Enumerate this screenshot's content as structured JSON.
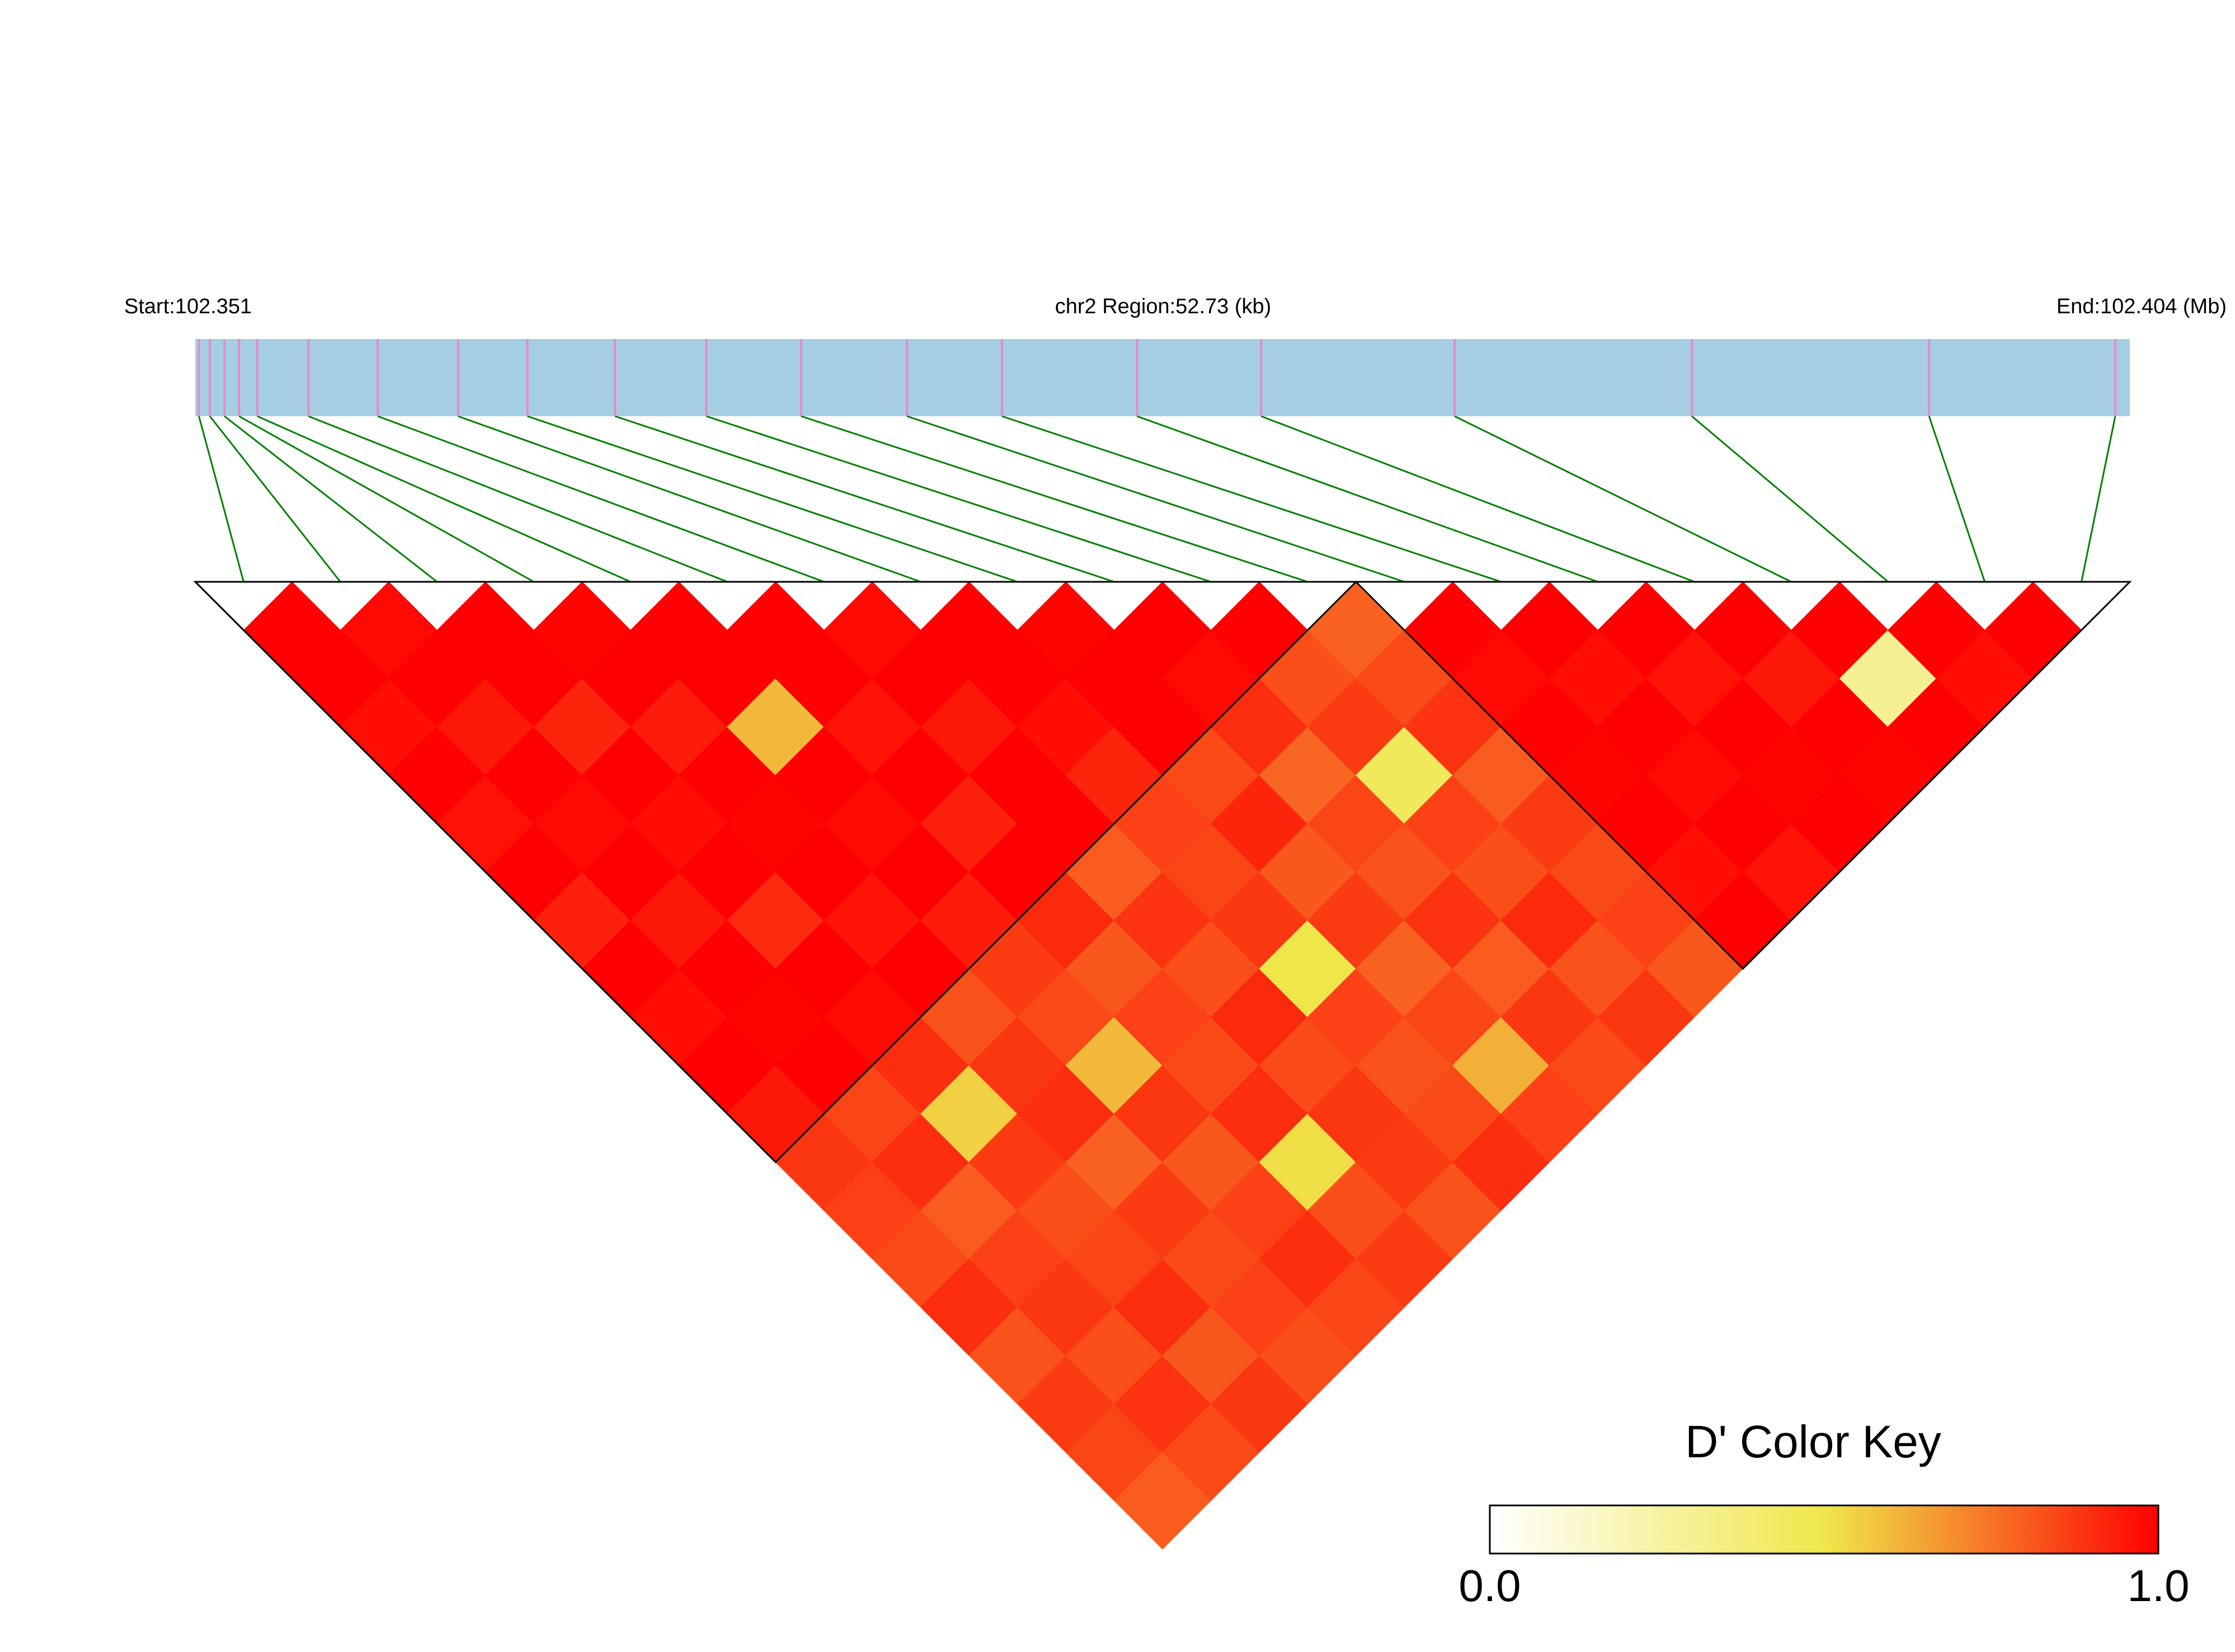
{
  "chart_data": {
    "type": "ld_heatmap",
    "title": "chr2 Region:52.73 (kb)",
    "start_label": "Start:102.351",
    "end_label": "End:102.404 (Mb)",
    "xlim": [
      102.351,
      102.404
    ],
    "snp_positions": [
      102.3511,
      102.3514,
      102.3518,
      102.3522,
      102.3527,
      102.3541,
      102.356,
      102.3582,
      102.3601,
      102.3625,
      102.365,
      102.3676,
      102.3705,
      102.3731,
      102.3768,
      102.3802,
      102.3855,
      102.392,
      102.3985,
      102.4036
    ],
    "dprime": [
      [
        1.0
      ],
      [
        1.0,
        0.98
      ],
      [
        0.97,
        1.0,
        1.0
      ],
      [
        1.0,
        0.95,
        1.0,
        0.99
      ],
      [
        0.96,
        1.0,
        0.92,
        1.0,
        1.0
      ],
      [
        1.0,
        0.98,
        1.0,
        0.94,
        1.0,
        1.0
      ],
      [
        0.93,
        1.0,
        0.97,
        1.0,
        0.6,
        1.0,
        0.98
      ],
      [
        1.0,
        0.95,
        1.0,
        0.99,
        1.0,
        0.96,
        1.0,
        1.0
      ],
      [
        0.97,
        1.0,
        0.91,
        1.0,
        0.98,
        1.0,
        0.95,
        1.0,
        0.99
      ],
      [
        1.0,
        0.99,
        1.0,
        0.96,
        1.0,
        0.93,
        1.0,
        0.97,
        1.0,
        1.0
      ],
      [
        0.95,
        1.0,
        0.98,
        1.0,
        0.94,
        1.0,
        1.0,
        0.92,
        1.0,
        0.98,
        1.0
      ],
      [
        0.88,
        0.85,
        0.9,
        0.82,
        0.87,
        0.91,
        0.8,
        0.86,
        0.84,
        0.9,
        0.83,
        0.79
      ],
      [
        0.86,
        0.9,
        0.55,
        0.88,
        0.84,
        0.81,
        0.89,
        0.85,
        0.92,
        0.78,
        0.87,
        0.84,
        1.0
      ],
      [
        0.84,
        0.8,
        0.87,
        0.9,
        0.6,
        0.86,
        0.83,
        0.88,
        0.81,
        0.85,
        0.45,
        0.89,
        0.98,
        1.0
      ],
      [
        0.9,
        0.86,
        0.83,
        0.79,
        0.88,
        0.84,
        0.91,
        0.5,
        0.87,
        0.82,
        0.86,
        0.8,
        1.0,
        0.97,
        1.0
      ],
      [
        0.82,
        0.88,
        0.85,
        0.87,
        0.81,
        0.9,
        0.84,
        0.86,
        0.79,
        0.89,
        0.83,
        0.87,
        0.99,
        1.0,
        0.96,
        1.0
      ],
      [
        0.87,
        0.83,
        0.9,
        0.84,
        0.86,
        0.52,
        0.88,
        0.82,
        0.85,
        0.8,
        0.91,
        0.84,
        1.0,
        0.98,
        1.0,
        0.95,
        1.0
      ],
      [
        0.85,
        0.89,
        0.81,
        0.86,
        0.9,
        0.83,
        0.87,
        0.84,
        0.62,
        0.88,
        0.82,
        0.86,
        0.97,
        1.0,
        0.99,
        1.0,
        0.3,
        1.0
      ],
      [
        0.8,
        0.84,
        0.88,
        0.83,
        0.85,
        0.87,
        0.82,
        0.9,
        0.86,
        0.84,
        0.88,
        0.81,
        1.0,
        0.96,
        1.0,
        0.99,
        1.0,
        0.97,
        1.0
      ]
    ],
    "blocks": [
      [
        0,
        11
      ],
      [
        12,
        19
      ]
    ],
    "colors": [
      "#ffffff",
      "#efe74a",
      "#ff0000"
    ],
    "bar_color": "#a6cee3",
    "snp_color": "#e58bc6",
    "line_color": "#008000",
    "color_key": {
      "title": "D' Color Key",
      "xlim": [
        0,
        1
      ],
      "xticks": [
        {
          "value": 0,
          "label": "0.0"
        },
        {
          "value": 1,
          "label": "1.0"
        }
      ]
    }
  }
}
